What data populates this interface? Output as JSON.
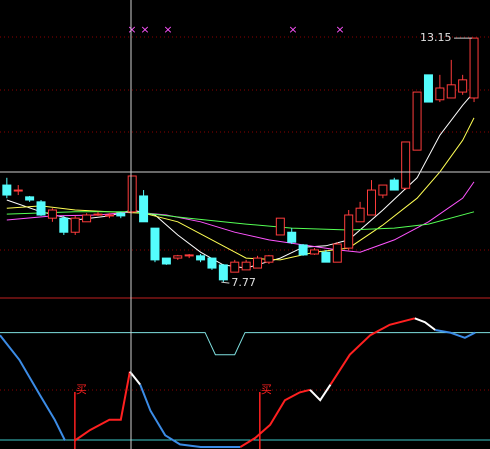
{
  "chart_data": [
    {
      "type": "candlestick",
      "xlim": [
        -0.6,
        42.4
      ],
      "ylim": [
        7.42,
        13.99
      ],
      "up_color": "#ff3c3c",
      "down_color": "#54fcfc",
      "open": [
        9.91,
        9.8,
        9.65,
        9.54,
        9.18,
        9.18,
        8.87,
        9.1,
        9.25,
        9.23,
        9.29,
        9.32,
        9.67,
        8.96,
        8.3,
        8.3,
        8.35,
        8.35,
        8.3,
        8.15,
        7.99,
        8.04,
        8.08,
        8.21,
        8.81,
        8.87,
        8.59,
        8.39,
        8.43,
        8.21,
        8.52,
        9.1,
        9.25,
        9.69,
        10.02,
        9.84,
        10.68,
        12.34,
        11.79,
        11.83,
        11.96,
        11.83
      ],
      "high": [
        10.07,
        9.91,
        9.67,
        9.58,
        9.4,
        9.23,
        9.23,
        9.29,
        9.32,
        9.29,
        9.32,
        10.11,
        9.8,
        8.96,
        8.3,
        8.37,
        8.39,
        8.39,
        8.3,
        8.17,
        8.26,
        8.26,
        8.35,
        8.37,
        9.18,
        8.96,
        8.61,
        8.52,
        8.48,
        8.65,
        9.36,
        9.54,
        10.02,
        9.91,
        10.07,
        10.86,
        11.96,
        12.34,
        12.34,
        12.67,
        12.34,
        13.15
      ],
      "low": [
        9.62,
        9.69,
        9.54,
        9.23,
        9.1,
        8.81,
        8.81,
        9.1,
        9.23,
        9.18,
        9.18,
        9.29,
        9.1,
        8.21,
        8.15,
        8.26,
        8.3,
        8.21,
        8.04,
        7.77,
        7.99,
        8.04,
        8.08,
        8.17,
        8.81,
        8.61,
        8.35,
        8.37,
        8.21,
        8.21,
        8.48,
        9.1,
        9.25,
        9.62,
        9.8,
        9.8,
        10.68,
        11.74,
        11.74,
        11.83,
        11.9,
        11.74
      ],
      "close": [
        9.69,
        9.8,
        9.58,
        9.25,
        9.36,
        8.87,
        9.18,
        9.25,
        9.27,
        9.25,
        9.23,
        10.11,
        9.1,
        8.26,
        8.17,
        8.35,
        8.37,
        8.26,
        8.08,
        7.82,
        8.21,
        8.21,
        8.3,
        8.35,
        9.18,
        8.65,
        8.37,
        8.48,
        8.21,
        8.61,
        9.25,
        9.4,
        9.8,
        9.91,
        9.8,
        10.86,
        11.96,
        11.74,
        12.05,
        12.12,
        12.23,
        13.15
      ],
      "lines": [
        {
          "color": "#ffffff",
          "x": [
            0,
            3,
            6,
            9,
            11,
            13,
            15,
            17,
            19,
            21,
            24,
            26,
            28,
            30,
            33,
            36,
            38,
            40,
            41
          ],
          "values": [
            9.58,
            9.32,
            9.14,
            9.23,
            9.36,
            9.25,
            8.81,
            8.43,
            8.15,
            8.08,
            8.3,
            8.54,
            8.57,
            8.7,
            9.36,
            10.07,
            11.01,
            11.67,
            11.96
          ]
        },
        {
          "color": "#ffff54",
          "x": [
            0,
            3,
            6,
            9,
            12,
            15,
            18,
            21,
            24,
            27,
            30,
            33,
            36,
            38,
            40,
            41
          ],
          "values": [
            9.4,
            9.45,
            9.36,
            9.32,
            9.29,
            9.1,
            8.7,
            8.3,
            8.26,
            8.43,
            8.52,
            9.03,
            9.62,
            10.2,
            10.9,
            11.39
          ]
        },
        {
          "color": "#ff54ff",
          "x": [
            0,
            4,
            8,
            11,
            14,
            17,
            20,
            23,
            26,
            29,
            31,
            34,
            37,
            40,
            41
          ],
          "values": [
            9.14,
            9.23,
            9.25,
            9.32,
            9.25,
            9.1,
            8.87,
            8.7,
            8.59,
            8.48,
            8.43,
            8.7,
            9.1,
            9.62,
            9.98
          ]
        },
        {
          "color": "#54ff54",
          "x": [
            0,
            6,
            11,
            16,
            21,
            25,
            30,
            34,
            37,
            41
          ],
          "values": [
            9.27,
            9.32,
            9.32,
            9.18,
            9.05,
            8.96,
            8.92,
            8.96,
            9.05,
            9.32
          ]
        }
      ],
      "annotations": [
        {
          "x": 41,
          "value": 13.15
        },
        {
          "x": 19,
          "value": 7.77
        }
      ]
    },
    {
      "type": "line",
      "xlim": [
        -0.6,
        42.4
      ],
      "ylim": [
        0,
        100
      ],
      "series": [
        {
          "color": "#7fe0e0",
          "x": [
            -0.6,
            17.4,
            18.3,
            20,
            20.9,
            42.4
          ],
          "values": [
            88,
            88,
            71,
            71,
            88,
            88
          ]
        },
        {
          "color": "#3c8ce6",
          "x": [
            -0.6,
            1.1,
            2.9,
            4.2,
            5.1
          ],
          "values": [
            86,
            67,
            40,
            21,
            5
          ]
        },
        {
          "color": "#ff2020",
          "x": [
            5.97,
            7.3,
            9,
            10,
            10.8
          ],
          "values": [
            5,
            13,
            21,
            21,
            58
          ]
        },
        {
          "color": "#ffffff",
          "x": [
            10.8,
            11.7
          ],
          "values": [
            58,
            48
          ]
        },
        {
          "color": "#3c8ce6",
          "x": [
            11.7,
            12.6,
            13.9,
            15.2,
            17,
            20.5
          ],
          "values": [
            48,
            28,
            9,
            2,
            0,
            0
          ]
        },
        {
          "color": "#ff2020",
          "x": [
            20.5,
            21.8,
            23.1,
            24.4,
            25.7,
            26.6
          ],
          "values": [
            0,
            7,
            17,
            36,
            42,
            44
          ]
        },
        {
          "color": "#ffffff",
          "x": [
            26.6,
            27.5,
            28.4
          ],
          "values": [
            44,
            36,
            48
          ]
        },
        {
          "color": "#ff2020",
          "x": [
            28.4,
            30.1,
            31.9,
            33.6,
            35.8
          ],
          "values": [
            48,
            71,
            86,
            94,
            99
          ]
        },
        {
          "color": "#ffffff",
          "x": [
            35.8,
            36.7,
            37.6
          ],
          "values": [
            99,
            96,
            90
          ]
        },
        {
          "color": "#3c8ce6",
          "x": [
            37.6,
            38.9,
            40.2,
            41.1
          ],
          "values": [
            90,
            88,
            84,
            88
          ]
        }
      ],
      "signals": [
        {
          "x": 5.97,
          "label": "买"
        },
        {
          "x": 22.2,
          "label": "买"
        }
      ]
    }
  ]
}
